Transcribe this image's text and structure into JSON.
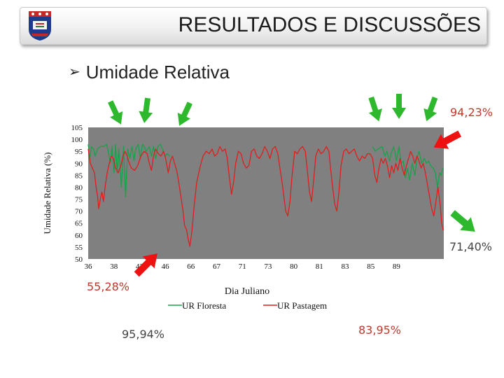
{
  "slide": {
    "title": "RESULTADOS E DISCUSSÕES",
    "bullet": "Umidade Relativa",
    "logo_icon": "university-shield-icon"
  },
  "colors": {
    "floresta": "#16a34a",
    "pastagem": "#e11d1d",
    "plot_bg": "#808080",
    "annotation_red": "#c0392b",
    "annotation_gray": "#444444",
    "arrow_green": "#2eb82e",
    "arrow_red": "#ee1111"
  },
  "annotations": {
    "max_right": "94,23%",
    "min_right": "71,40%",
    "min_left": "55,28%",
    "mean_floresta": "95,94%",
    "mean_pastagem": "83,95%"
  },
  "chart_data": {
    "type": "line",
    "title": "",
    "xlabel": "Dia Juliano",
    "ylabel": "Umidade Relativa (%)",
    "ylim": [
      50,
      105
    ],
    "yticks": [
      50,
      55,
      60,
      65,
      70,
      75,
      80,
      85,
      90,
      95,
      100,
      105
    ],
    "xtick_labels": [
      "36",
      "38",
      "42",
      "46",
      "66",
      "67",
      "71",
      "73",
      "80",
      "81",
      "83",
      "85",
      "89"
    ],
    "grid": false,
    "legend_position": "bottom",
    "series": [
      {
        "name": "UR Floresta",
        "segments": [
          [
            [
              0.0,
              98
            ],
            [
              0.3,
              92
            ],
            [
              0.6,
              97
            ],
            [
              1.0,
              96
            ],
            [
              1.3,
              93
            ],
            [
              1.8,
              96
            ],
            [
              2.3,
              97
            ],
            [
              3.0,
              97
            ],
            [
              3.5,
              98
            ],
            [
              3.8,
              95
            ],
            [
              4.2,
              90
            ],
            [
              4.5,
              97
            ],
            [
              4.9,
              86
            ],
            [
              5.2,
              98
            ],
            [
              5.5,
              86
            ],
            [
              5.8,
              96
            ],
            [
              6.3,
              80
            ],
            [
              6.7,
              97
            ],
            [
              7.1,
              76
            ],
            [
              7.5,
              96
            ],
            [
              7.9,
              92
            ],
            [
              8.3,
              97
            ],
            [
              8.7,
              91
            ],
            [
              9.0,
              96
            ],
            [
              9.5,
              98
            ],
            [
              9.9,
              92
            ],
            [
              10.3,
              98
            ],
            [
              10.6,
              97
            ],
            [
              11.0,
              95
            ],
            [
              11.6,
              97
            ],
            [
              12.0,
              93
            ],
            [
              12.4,
              97
            ],
            [
              12.8,
              92
            ],
            [
              13.2,
              97
            ],
            [
              13.7,
              98
            ],
            [
              14.1,
              96
            ],
            [
              14.6,
              93
            ],
            [
              15.0,
              94
            ],
            [
              15.5,
              93
            ]
          ],
          [
            [
              54.0,
              97
            ],
            [
              54.5,
              95
            ],
            [
              55.0,
              96
            ],
            [
              55.8,
              97
            ],
            [
              56.3,
              93
            ],
            [
              56.7,
              95
            ],
            [
              57.2,
              91
            ],
            [
              57.5,
              94
            ],
            [
              58.0,
              97
            ],
            [
              58.5,
              91
            ],
            [
              59.0,
              97
            ],
            [
              59.4,
              90
            ],
            [
              59.8,
              91
            ],
            [
              60.2,
              84
            ],
            [
              60.6,
              88
            ],
            [
              61.0,
              83
            ],
            [
              61.5,
              90
            ],
            [
              62.0,
              85
            ],
            [
              62.4,
              92
            ],
            [
              62.8,
              95
            ],
            [
              63.3,
              90
            ],
            [
              63.8,
              92
            ],
            [
              64.2,
              90
            ],
            [
              64.6,
              91
            ],
            [
              65.0,
              89
            ],
            [
              65.5,
              88
            ],
            [
              65.9,
              86
            ],
            [
              66.3,
              80
            ],
            [
              66.7,
              86
            ],
            [
              67.0,
              85
            ],
            [
              67.3,
              88
            ]
          ]
        ]
      },
      {
        "name": "UR Pastagem",
        "segments": [
          [
            [
              0.0,
              96
            ],
            [
              0.4,
              90
            ],
            [
              0.8,
              88
            ],
            [
              1.2,
              86
            ],
            [
              1.5,
              80
            ],
            [
              1.8,
              76
            ],
            [
              2.0,
              71
            ],
            [
              2.3,
              75
            ],
            [
              2.6,
              78
            ],
            [
              2.9,
              74
            ],
            [
              3.2,
              80
            ],
            [
              3.6,
              86
            ],
            [
              4.0,
              90
            ],
            [
              4.4,
              93
            ],
            [
              4.8,
              92
            ],
            [
              5.2,
              88
            ],
            [
              5.7,
              86
            ],
            [
              6.2,
              89
            ],
            [
              6.6,
              93
            ],
            [
              7.0,
              95
            ],
            [
              7.4,
              93
            ],
            [
              7.8,
              90
            ],
            [
              8.2,
              88
            ],
            [
              8.8,
              87
            ],
            [
              9.4,
              89
            ],
            [
              10.0,
              93
            ],
            [
              10.6,
              95
            ],
            [
              11.2,
              94
            ],
            [
              11.6,
              90
            ],
            [
              12.0,
              87
            ],
            [
              12.4,
              93
            ],
            [
              12.8,
              96
            ],
            [
              13.3,
              94
            ],
            [
              13.8,
              93
            ],
            [
              14.3,
              95
            ],
            [
              14.7,
              92
            ],
            [
              15.2,
              86
            ],
            [
              15.6,
              91
            ],
            [
              16.0,
              93
            ],
            [
              16.4,
              90
            ],
            [
              16.8,
              87
            ],
            [
              17.2,
              82
            ],
            [
              17.6,
              76
            ],
            [
              18.0,
              70
            ],
            [
              18.3,
              64
            ],
            [
              18.7,
              62
            ],
            [
              19.0,
              58
            ],
            [
              19.3,
              55.3
            ],
            [
              19.7,
              62
            ],
            [
              20.1,
              72
            ],
            [
              20.6,
              82
            ],
            [
              21.2,
              88
            ],
            [
              21.8,
              93
            ],
            [
              22.4,
              95
            ],
            [
              23.0,
              94
            ],
            [
              23.5,
              96
            ],
            [
              24.0,
              93
            ],
            [
              24.5,
              94
            ],
            [
              25.0,
              97
            ],
            [
              25.5,
              95
            ],
            [
              26.0,
              96
            ],
            [
              26.4,
              92
            ],
            [
              26.8,
              84
            ],
            [
              27.2,
              77
            ],
            [
              27.6,
              82
            ],
            [
              28.0,
              90
            ],
            [
              28.5,
              95
            ],
            [
              29.0,
              94
            ],
            [
              29.5,
              90
            ],
            [
              30.0,
              88
            ],
            [
              30.5,
              89
            ],
            [
              31.0,
              95
            ],
            [
              31.5,
              96
            ],
            [
              32.0,
              93
            ],
            [
              32.5,
              92
            ],
            [
              33.0,
              94
            ],
            [
              33.5,
              97
            ],
            [
              34.0,
              95
            ],
            [
              34.5,
              92
            ],
            [
              35.0,
              96
            ],
            [
              35.5,
              97
            ],
            [
              36.0,
              94
            ],
            [
              36.4,
              88
            ],
            [
              36.8,
              82
            ],
            [
              37.2,
              75
            ],
            [
              37.5,
              70
            ],
            [
              37.9,
              68
            ],
            [
              38.3,
              74
            ],
            [
              38.7,
              85
            ],
            [
              39.2,
              95
            ],
            [
              39.7,
              94
            ],
            [
              40.2,
              96
            ],
            [
              40.7,
              97
            ],
            [
              41.2,
              95
            ],
            [
              41.6,
              87
            ],
            [
              42.0,
              78
            ],
            [
              42.4,
              74
            ],
            [
              42.8,
              83
            ],
            [
              43.2,
              93
            ],
            [
              43.7,
              96
            ],
            [
              44.2,
              94
            ],
            [
              44.7,
              95
            ],
            [
              45.2,
              97
            ],
            [
              45.7,
              95
            ],
            [
              46.0,
              88
            ],
            [
              46.4,
              80
            ],
            [
              46.8,
              73
            ],
            [
              47.2,
              70
            ],
            [
              47.6,
              78
            ],
            [
              48.0,
              89
            ],
            [
              48.5,
              95
            ],
            [
              49.0,
              96
            ],
            [
              49.5,
              94
            ],
            [
              50.0,
              95
            ],
            [
              50.5,
              96
            ],
            [
              51.0,
              93
            ],
            [
              51.5,
              91
            ],
            [
              52.0,
              93
            ],
            [
              52.5,
              92
            ],
            [
              53.0,
              94
            ],
            [
              53.5,
              94
            ],
            [
              54.0,
              92
            ],
            [
              54.4,
              85
            ],
            [
              54.8,
              82
            ],
            [
              55.2,
              88
            ],
            [
              55.6,
              92
            ],
            [
              56.0,
              90
            ],
            [
              56.4,
              92
            ],
            [
              56.8,
              89
            ],
            [
              57.2,
              84
            ],
            [
              57.6,
              89
            ],
            [
              58.0,
              86
            ],
            [
              58.4,
              90
            ],
            [
              58.8,
              87
            ],
            [
              59.2,
              92
            ],
            [
              59.6,
              88
            ],
            [
              60.0,
              85
            ],
            [
              60.4,
              89
            ],
            [
              60.8,
              92
            ],
            [
              61.2,
              95
            ],
            [
              61.6,
              93
            ],
            [
              62.0,
              90
            ],
            [
              62.4,
              93
            ],
            [
              62.8,
              91
            ],
            [
              63.2,
              88
            ],
            [
              63.6,
              90
            ],
            [
              64.0,
              86
            ],
            [
              64.4,
              81
            ],
            [
              64.8,
              76
            ],
            [
              65.2,
              71
            ],
            [
              65.6,
              68
            ],
            [
              66.0,
              74
            ],
            [
              66.4,
              80
            ],
            [
              66.8,
              73
            ],
            [
              67.1,
              65
            ],
            [
              67.4,
              62
            ]
          ]
        ]
      }
    ]
  }
}
